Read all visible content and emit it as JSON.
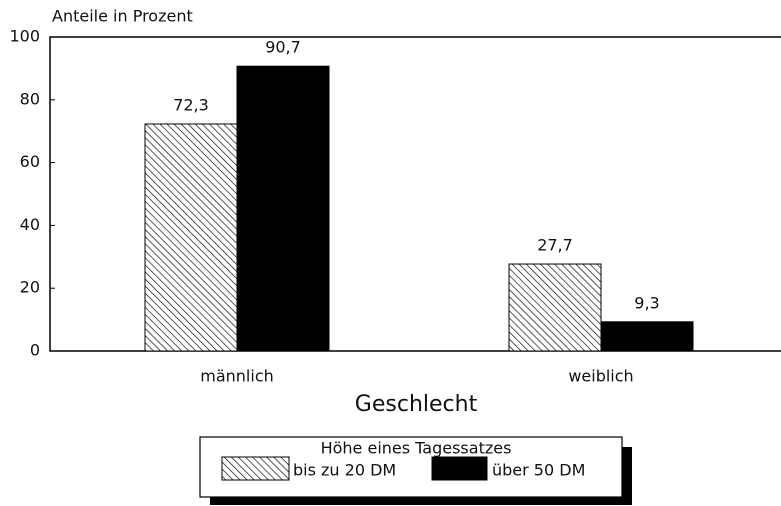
{
  "chart_data": {
    "type": "bar",
    "y_label": "Anteile in Prozent",
    "x_label": "Geschlecht",
    "legend_title": "Höhe eines Tagessatzes",
    "categories": [
      "männlich",
      "weiblich"
    ],
    "series": [
      {
        "name": "bis zu 20 DM",
        "color": "#000000",
        "hatch": true,
        "values": [
          72.3,
          27.7
        ],
        "value_labels": [
          "72,3",
          "27,7"
        ]
      },
      {
        "name": "über 50 DM",
        "color": "#000000",
        "hatch": false,
        "values": [
          90.7,
          9.3
        ],
        "value_labels": [
          "90,7",
          "9,3"
        ]
      }
    ],
    "ylim": [
      0,
      100
    ],
    "yticks": [
      0,
      20,
      40,
      60,
      80,
      100
    ],
    "grid": false
  }
}
